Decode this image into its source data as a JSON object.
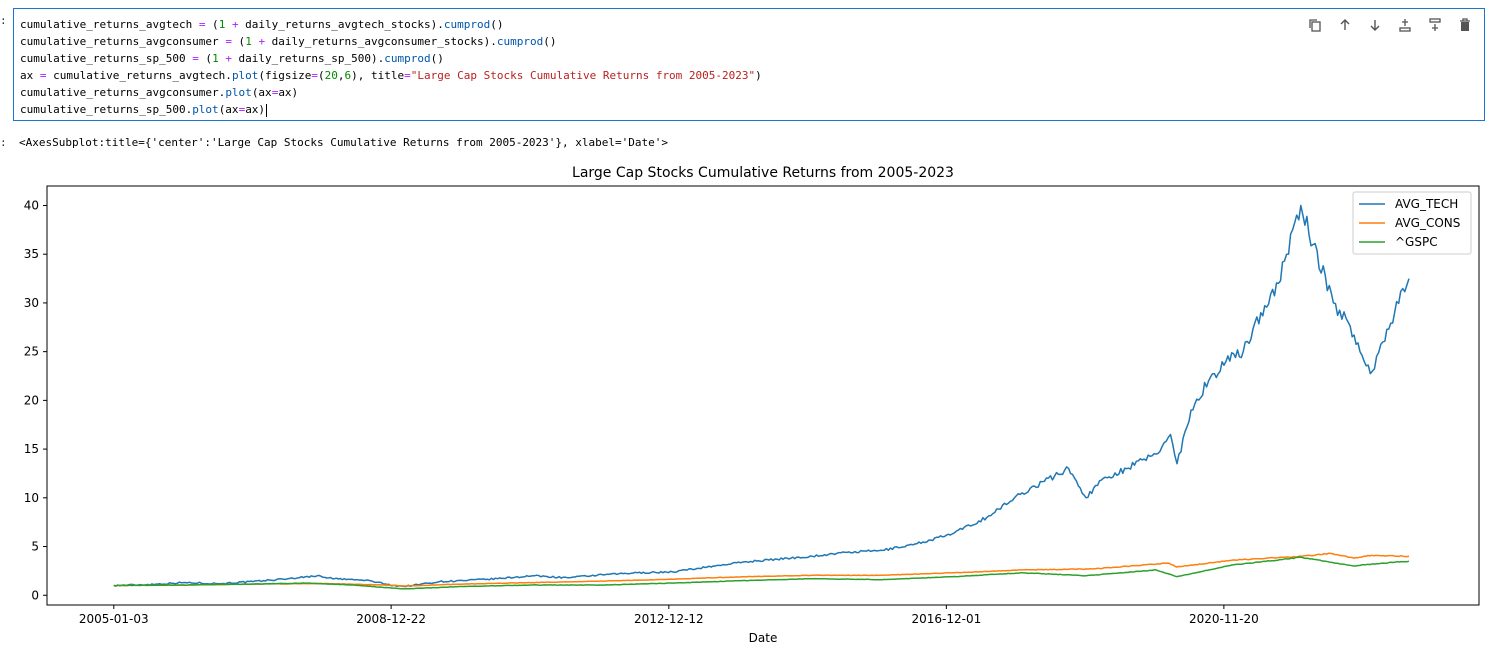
{
  "prompts": {
    "input": ":",
    "output": ":"
  },
  "code_lines": [
    [
      {
        "t": "cumulative_returns_avgtech ",
        "c": ""
      },
      {
        "t": "=",
        "c": "op"
      },
      {
        "t": " (",
        "c": ""
      },
      {
        "t": "1",
        "c": "num"
      },
      {
        "t": " ",
        "c": ""
      },
      {
        "t": "+",
        "c": "op"
      },
      {
        "t": " daily_returns_avgtech_stocks).",
        "c": ""
      },
      {
        "t": "cumprod",
        "c": "fn"
      },
      {
        "t": "()",
        "c": ""
      }
    ],
    [
      {
        "t": "cumulative_returns_avgconsumer ",
        "c": ""
      },
      {
        "t": "=",
        "c": "op"
      },
      {
        "t": " (",
        "c": ""
      },
      {
        "t": "1",
        "c": "num"
      },
      {
        "t": " ",
        "c": ""
      },
      {
        "t": "+",
        "c": "op"
      },
      {
        "t": " daily_returns_avgconsumer_stocks).",
        "c": ""
      },
      {
        "t": "cumprod",
        "c": "fn"
      },
      {
        "t": "()",
        "c": ""
      }
    ],
    [
      {
        "t": "cumulative_returns_sp_500 ",
        "c": ""
      },
      {
        "t": "=",
        "c": "op"
      },
      {
        "t": " (",
        "c": ""
      },
      {
        "t": "1",
        "c": "num"
      },
      {
        "t": " ",
        "c": ""
      },
      {
        "t": "+",
        "c": "op"
      },
      {
        "t": " daily_returns_sp_500).",
        "c": ""
      },
      {
        "t": "cumprod",
        "c": "fn"
      },
      {
        "t": "()",
        "c": ""
      }
    ],
    [
      {
        "t": "ax ",
        "c": ""
      },
      {
        "t": "=",
        "c": "op"
      },
      {
        "t": " cumulative_returns_avgtech.",
        "c": ""
      },
      {
        "t": "plot",
        "c": "fn"
      },
      {
        "t": "(figsize",
        "c": ""
      },
      {
        "t": "=",
        "c": "op"
      },
      {
        "t": "(",
        "c": ""
      },
      {
        "t": "20",
        "c": "num"
      },
      {
        "t": ",",
        "c": ""
      },
      {
        "t": "6",
        "c": "num"
      },
      {
        "t": "), title",
        "c": ""
      },
      {
        "t": "=",
        "c": "op"
      },
      {
        "t": "\"Large Cap Stocks Cumulative Returns from 2005-2023\"",
        "c": "str"
      },
      {
        "t": ")",
        "c": ""
      }
    ],
    [
      {
        "t": "cumulative_returns_avgconsumer.",
        "c": ""
      },
      {
        "t": "plot",
        "c": "fn"
      },
      {
        "t": "(ax",
        "c": ""
      },
      {
        "t": "=",
        "c": "op"
      },
      {
        "t": "ax)",
        "c": ""
      }
    ],
    [
      {
        "t": "cumulative_returns_sp_500.",
        "c": ""
      },
      {
        "t": "plot",
        "c": "fn"
      },
      {
        "t": "(ax",
        "c": ""
      },
      {
        "t": "=",
        "c": "op"
      },
      {
        "t": "ax)",
        "c": ""
      }
    ]
  ],
  "toolbar": [
    {
      "name": "duplicate-icon",
      "icon": "duplicate"
    },
    {
      "name": "move-up-icon",
      "icon": "arrow-up"
    },
    {
      "name": "move-down-icon",
      "icon": "arrow-down"
    },
    {
      "name": "insert-above-icon",
      "icon": "insert-above"
    },
    {
      "name": "insert-below-icon",
      "icon": "insert-below"
    },
    {
      "name": "delete-icon",
      "icon": "trash"
    }
  ],
  "output_text": "<AxesSubplot:title={'center':'Large Cap Stocks Cumulative Returns from 2005-2023'}, xlabel='Date'>",
  "chart_data": {
    "type": "line",
    "title": "Large Cap Stocks Cumulative Returns from 2005-2023",
    "xlabel": "Date",
    "ylabel": "",
    "x_tick_labels": [
      "2005-01-03",
      "2008-12-22",
      "2012-12-12",
      "2016-12-01",
      "2020-11-20"
    ],
    "y_ticks": [
      0,
      5,
      10,
      15,
      20,
      25,
      30,
      35,
      40
    ],
    "xlim": [
      "2004-01-20",
      "2024-07-15"
    ],
    "ylim": [
      -1.0,
      42.0
    ],
    "grid": false,
    "legend_position": "top-right",
    "colors": {
      "avg_tech": "#1f77b4",
      "avg_cons": "#ff7f0e",
      "gspc": "#2ca02c"
    },
    "series": [
      {
        "name": "AVG_TECH",
        "color": "#1f77b4",
        "points": [
          [
            "2005-01-03",
            1.0
          ],
          [
            "2005-07-01",
            1.1
          ],
          [
            "2006-01-01",
            1.3
          ],
          [
            "2006-07-01",
            1.2
          ],
          [
            "2007-01-01",
            1.4
          ],
          [
            "2007-07-01",
            1.7
          ],
          [
            "2007-12-01",
            2.0
          ],
          [
            "2008-03-01",
            1.7
          ],
          [
            "2008-09-01",
            1.5
          ],
          [
            "2008-12-01",
            1.1
          ],
          [
            "2009-03-01",
            0.9
          ],
          [
            "2009-09-01",
            1.4
          ],
          [
            "2010-01-01",
            1.5
          ],
          [
            "2010-07-01",
            1.7
          ],
          [
            "2011-01-01",
            2.0
          ],
          [
            "2011-07-01",
            1.8
          ],
          [
            "2012-01-01",
            2.1
          ],
          [
            "2012-07-01",
            2.3
          ],
          [
            "2013-01-01",
            2.4
          ],
          [
            "2013-07-01",
            2.9
          ],
          [
            "2014-01-01",
            3.4
          ],
          [
            "2014-07-01",
            3.7
          ],
          [
            "2015-01-01",
            4.0
          ],
          [
            "2015-07-01",
            4.4
          ],
          [
            "2016-01-01",
            4.6
          ],
          [
            "2016-07-01",
            5.3
          ],
          [
            "2017-01-01",
            6.3
          ],
          [
            "2017-07-01",
            8.0
          ],
          [
            "2018-01-01",
            10.5
          ],
          [
            "2018-09-01",
            13.0
          ],
          [
            "2018-12-01",
            10.0
          ],
          [
            "2019-03-01",
            12.0
          ],
          [
            "2019-07-01",
            13.0
          ],
          [
            "2019-12-01",
            14.5
          ],
          [
            "2020-02-15",
            16.5
          ],
          [
            "2020-03-20",
            13.5
          ],
          [
            "2020-06-01",
            19.0
          ],
          [
            "2020-09-01",
            22.0
          ],
          [
            "2020-12-01",
            24.0
          ],
          [
            "2021-03-01",
            25.0
          ],
          [
            "2021-06-01",
            29.0
          ],
          [
            "2021-09-01",
            32.0
          ],
          [
            "2021-12-27",
            40.0
          ],
          [
            "2022-03-01",
            36.0
          ],
          [
            "2022-06-15",
            30.0
          ],
          [
            "2022-09-01",
            28.0
          ],
          [
            "2022-11-01",
            25.0
          ],
          [
            "2023-01-05",
            23.0
          ],
          [
            "2023-03-01",
            26.0
          ],
          [
            "2023-05-01",
            29.0
          ],
          [
            "2023-07-15",
            32.5
          ]
        ]
      },
      {
        "name": "AVG_CONS",
        "color": "#ff7f0e",
        "points": [
          [
            "2005-01-03",
            1.0
          ],
          [
            "2006-01-01",
            1.05
          ],
          [
            "2007-01-01",
            1.15
          ],
          [
            "2008-01-01",
            1.2
          ],
          [
            "2008-12-01",
            1.05
          ],
          [
            "2009-03-01",
            0.95
          ],
          [
            "2010-01-01",
            1.15
          ],
          [
            "2011-01-01",
            1.3
          ],
          [
            "2012-01-01",
            1.45
          ],
          [
            "2013-01-01",
            1.65
          ],
          [
            "2014-01-01",
            1.9
          ],
          [
            "2015-01-01",
            2.05
          ],
          [
            "2016-01-01",
            2.05
          ],
          [
            "2017-01-01",
            2.3
          ],
          [
            "2018-01-01",
            2.6
          ],
          [
            "2019-01-01",
            2.7
          ],
          [
            "2020-02-01",
            3.3
          ],
          [
            "2020-03-20",
            2.9
          ],
          [
            "2021-01-01",
            3.6
          ],
          [
            "2022-01-01",
            4.0
          ],
          [
            "2022-06-01",
            4.3
          ],
          [
            "2022-10-01",
            3.8
          ],
          [
            "2023-01-01",
            4.1
          ],
          [
            "2023-07-15",
            4.0
          ]
        ]
      },
      {
        "name": "^GSPC",
        "color": "#2ca02c",
        "points": [
          [
            "2005-01-03",
            1.0
          ],
          [
            "2006-01-01",
            1.05
          ],
          [
            "2007-01-01",
            1.15
          ],
          [
            "2007-10-01",
            1.25
          ],
          [
            "2008-06-01",
            1.05
          ],
          [
            "2009-03-01",
            0.65
          ],
          [
            "2010-01-01",
            0.9
          ],
          [
            "2011-01-01",
            1.05
          ],
          [
            "2012-01-01",
            1.05
          ],
          [
            "2013-01-01",
            1.25
          ],
          [
            "2014-01-01",
            1.5
          ],
          [
            "2015-01-01",
            1.7
          ],
          [
            "2016-01-01",
            1.6
          ],
          [
            "2017-01-01",
            1.9
          ],
          [
            "2018-01-01",
            2.3
          ],
          [
            "2018-12-01",
            2.0
          ],
          [
            "2019-12-01",
            2.6
          ],
          [
            "2020-03-20",
            1.9
          ],
          [
            "2021-01-01",
            3.1
          ],
          [
            "2022-01-01",
            3.9
          ],
          [
            "2022-10-01",
            3.0
          ],
          [
            "2023-01-01",
            3.2
          ],
          [
            "2023-07-15",
            3.5
          ]
        ]
      }
    ]
  }
}
